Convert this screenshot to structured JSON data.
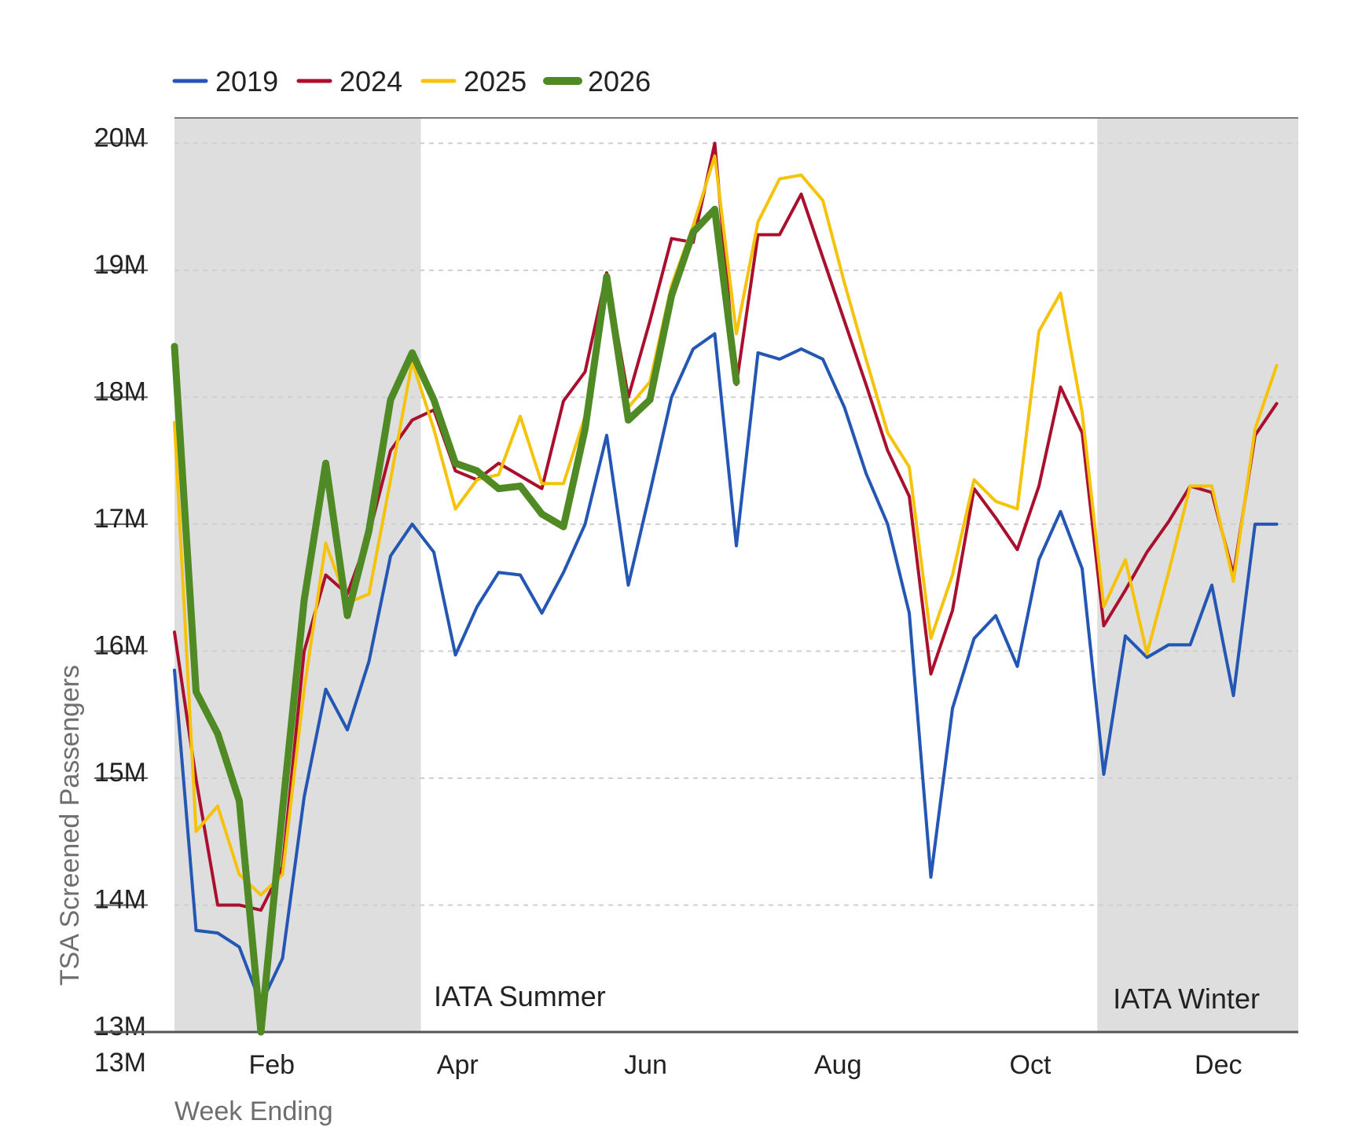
{
  "chart_data": {
    "type": "line",
    "xlabel": "Week Ending",
    "ylabel": "TSA Screened Passengers",
    "x_domain": [
      0,
      52
    ],
    "ylim": [
      13,
      20.2
    ],
    "y_ticks": [
      {
        "value": 20,
        "label": "20M"
      },
      {
        "value": 19,
        "label": "19M"
      },
      {
        "value": 18,
        "label": "18M"
      },
      {
        "value": 17,
        "label": "17M"
      },
      {
        "value": 16,
        "label": "16M"
      },
      {
        "value": 15,
        "label": "15M"
      },
      {
        "value": 14,
        "label": "14M"
      },
      {
        "value": 13,
        "label": "13M"
      }
    ],
    "y_floor_label": "13M",
    "x_ticks": [
      {
        "value": 4.5,
        "label": "Feb"
      },
      {
        "value": 13.1,
        "label": "Apr"
      },
      {
        "value": 21.8,
        "label": "Jun"
      },
      {
        "value": 30.7,
        "label": "Aug"
      },
      {
        "value": 39.6,
        "label": "Oct"
      },
      {
        "value": 48.3,
        "label": "Dec"
      }
    ],
    "bands": [
      {
        "from": 0,
        "to": 11.4,
        "label": ""
      },
      {
        "from": 42.7,
        "to": 52,
        "label": "IATA Winter"
      }
    ],
    "band_labels": [
      {
        "text": "IATA Summer",
        "at": 12
      }
    ],
    "grid": "horizontal-dashed",
    "legend_position": "top-left",
    "series": [
      {
        "name": "2019",
        "color": "#2456b4",
        "width": 4,
        "values": [
          15.85,
          13.8,
          13.78,
          13.67,
          13.22,
          13.58,
          14.85,
          15.7,
          15.38,
          15.92,
          16.75,
          17.0,
          16.78,
          15.97,
          16.35,
          16.62,
          16.6,
          16.3,
          16.62,
          17.0,
          17.7,
          16.52,
          17.25,
          18.0,
          18.38,
          18.5,
          16.83,
          18.35,
          18.3,
          18.38,
          18.3,
          17.92,
          17.4,
          17.0,
          16.3,
          14.22,
          15.55,
          16.1,
          16.28,
          15.88,
          16.72,
          17.1,
          16.65,
          15.03,
          16.12,
          15.95,
          16.05,
          16.05,
          16.52,
          15.65,
          17.0,
          17.0
        ]
      },
      {
        "name": "2024",
        "color": "#a8102e",
        "width": 4,
        "values": [
          16.15,
          14.99,
          14.0,
          14.0,
          13.96,
          14.3,
          16.0,
          16.6,
          16.45,
          16.92,
          17.58,
          17.82,
          17.9,
          17.42,
          17.35,
          17.48,
          17.38,
          17.28,
          17.97,
          18.2,
          18.98,
          18.0,
          18.6,
          19.25,
          19.22,
          20.0,
          18.1,
          19.28,
          19.28,
          19.6,
          19.1,
          18.6,
          18.1,
          17.58,
          17.22,
          15.82,
          16.32,
          17.28,
          17.05,
          16.8,
          17.3,
          18.08,
          17.72,
          16.2,
          16.48,
          16.78,
          17.02,
          17.3,
          17.25,
          16.6,
          17.7,
          17.95
        ]
      },
      {
        "name": "2025",
        "color": "#f5c20c",
        "width": 4,
        "values": [
          17.8,
          14.58,
          14.78,
          14.24,
          14.08,
          14.24,
          15.7,
          16.85,
          16.38,
          16.45,
          17.35,
          18.28,
          17.75,
          17.12,
          17.35,
          17.39,
          17.85,
          17.32,
          17.32,
          17.85,
          18.92,
          17.92,
          18.12,
          18.88,
          19.35,
          19.9,
          18.5,
          19.38,
          19.72,
          19.75,
          19.55,
          18.9,
          18.3,
          17.72,
          17.45,
          16.1,
          16.6,
          17.35,
          17.18,
          17.12,
          18.52,
          18.82,
          17.88,
          16.35,
          16.72,
          15.98,
          16.62,
          17.3,
          17.3,
          16.55,
          17.75,
          18.25
        ]
      },
      {
        "name": "2026",
        "color": "#4f8a24",
        "width": 9,
        "values": [
          18.4,
          15.68,
          15.35,
          14.82,
          13.0,
          14.75,
          16.4,
          17.48,
          16.28,
          16.95,
          17.98,
          18.35,
          17.98,
          17.48,
          17.42,
          17.28,
          17.3,
          17.08,
          16.98,
          17.75,
          18.95,
          17.82,
          17.98,
          18.8,
          19.3,
          19.48,
          18.12
        ]
      }
    ]
  }
}
